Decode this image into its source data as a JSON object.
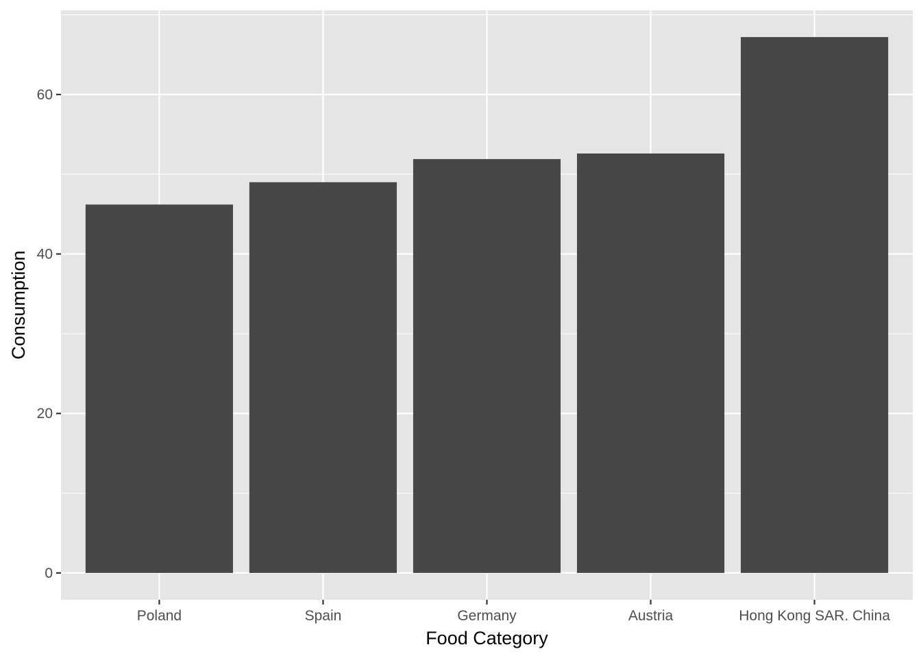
{
  "chart_data": {
    "type": "bar",
    "title": "",
    "xlabel": "Food Category",
    "ylabel": "Consumption",
    "categories": [
      "Poland",
      "Spain",
      "Germany",
      "Austria",
      "Hong Kong SAR. China"
    ],
    "values": [
      46.2,
      49.0,
      51.9,
      52.6,
      67.2
    ],
    "ylim": [
      -3.36,
      70.56
    ],
    "yticks": [
      0,
      20,
      40,
      60
    ],
    "ytick_labels": [
      "0",
      "20",
      "40",
      "60"
    ],
    "grid": true,
    "legend": "none",
    "colors": {
      "panel_background": "#e5e5e5",
      "gridlines": "#ffffff",
      "bars": "#474747",
      "tick_labels": "#4d4d4d",
      "axis_titles": "#000000"
    }
  }
}
